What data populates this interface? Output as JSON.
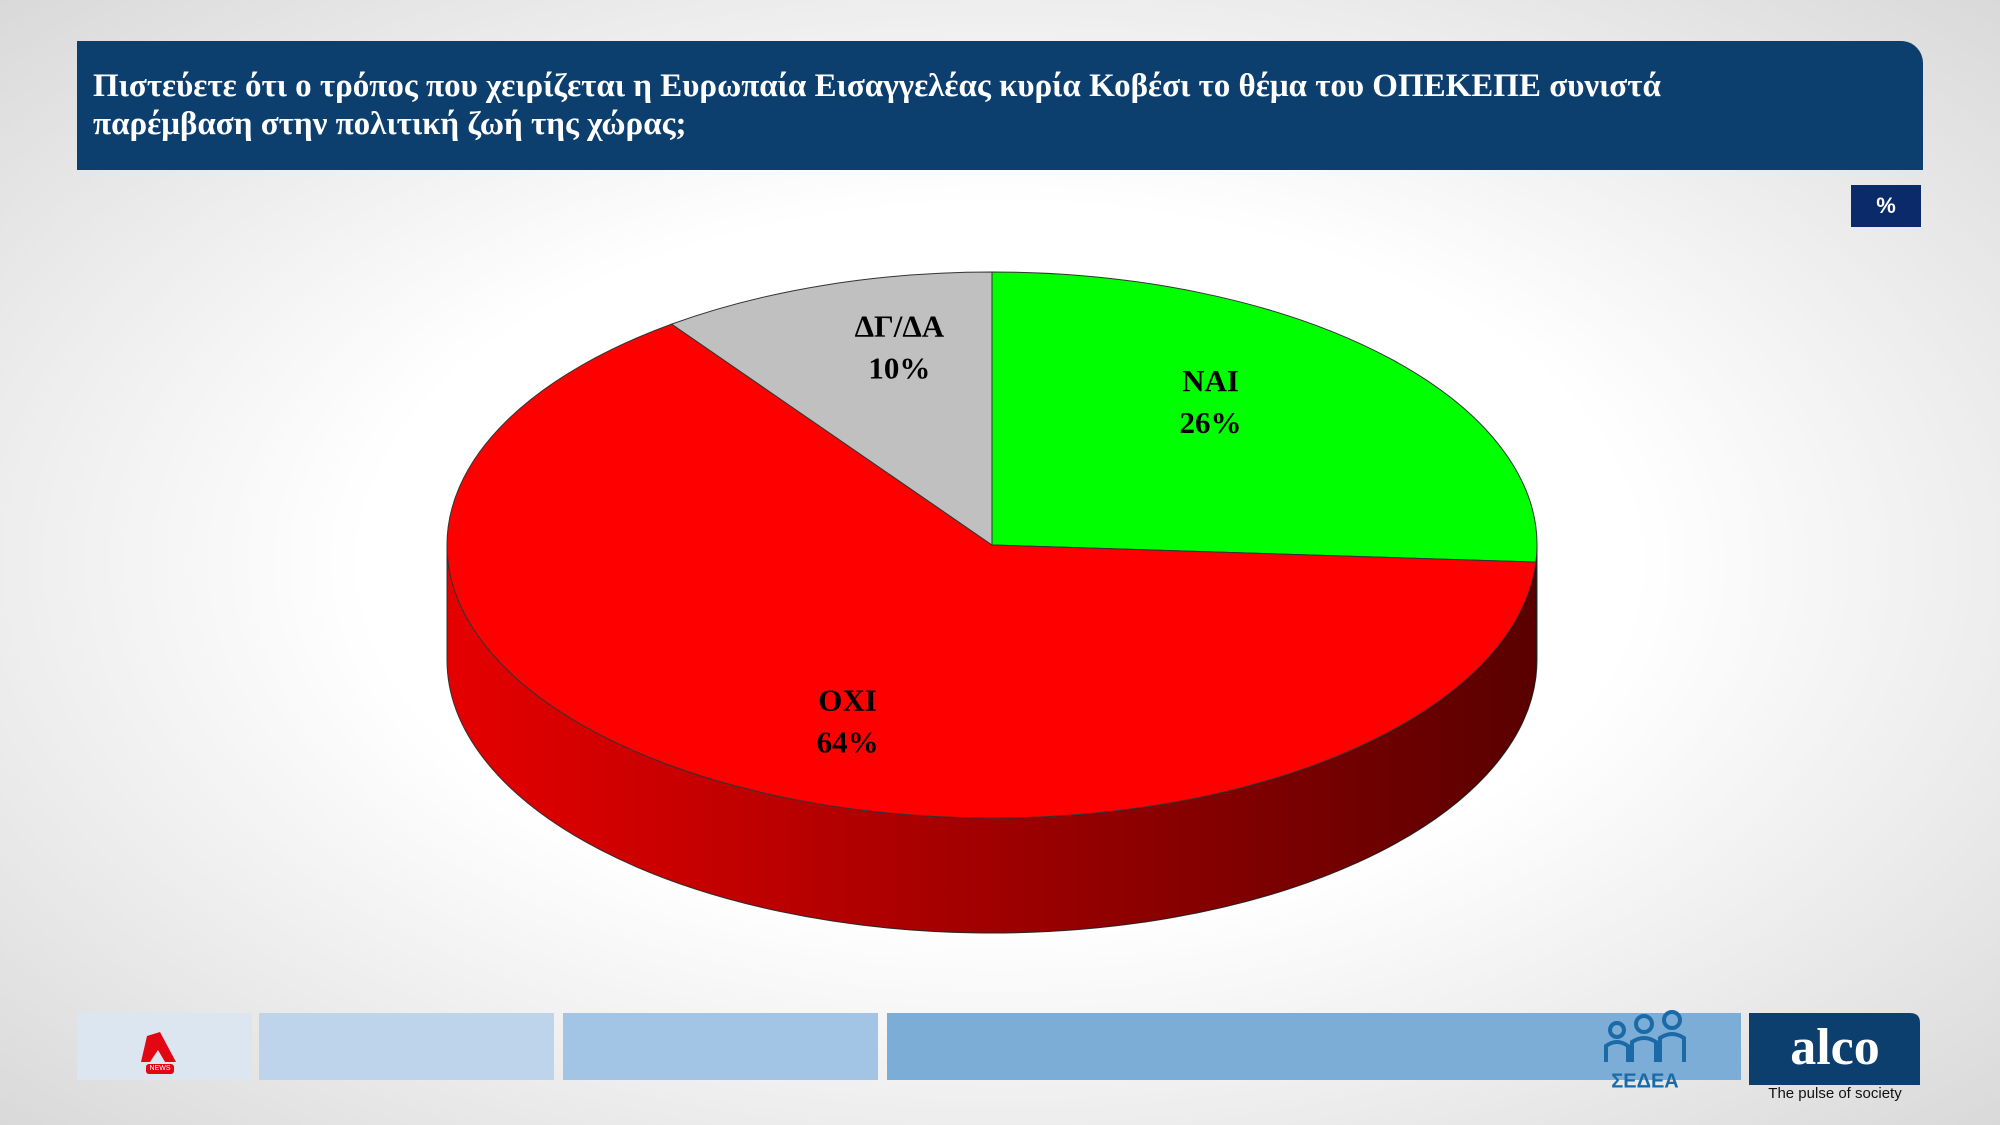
{
  "chart_data": {
    "type": "pie",
    "title": "Πιστεύετε  ότι ο τρόπος που χειρίζεται η Ευρωπαία Εισαγγελέας κυρία Κοβέσι το θέμα του ΟΠΕΚΕΠΕ συνιστά παρέμβαση στην πολιτική ζωή της χώρας;",
    "unit_badge": "%",
    "categories": [
      "ΝΑΙ",
      "ΟΧΙ",
      "ΔΓ/ΔΑ"
    ],
    "values": [
      26,
      64,
      10
    ],
    "value_labels": [
      "26%",
      "64%",
      "10%"
    ],
    "colors": [
      "#00ff00",
      "#ff0000",
      "#c0c0c0"
    ]
  },
  "footer": {
    "news": "NEWS",
    "sedea": "ΣΕΔΕΑ",
    "alco": "alco",
    "tagline": "The pulse of society"
  }
}
